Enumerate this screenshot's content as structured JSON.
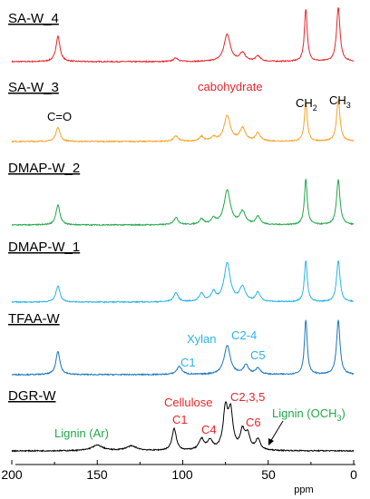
{
  "chart_data": {
    "type": "line",
    "xlabel": "ppm",
    "xlim": [
      200,
      0
    ],
    "x_reversed": true,
    "x_ticks": [
      "200",
      "150",
      "100",
      "50",
      "0"
    ],
    "series": [
      {
        "name": "SA-W_4",
        "color": "#e8262a",
        "peaks": [
          {
            "x": 173,
            "h": 28,
            "w": 1.4
          },
          {
            "x": 104,
            "h": 4,
            "w": 1.6
          },
          {
            "x": 74,
            "h": 30,
            "w": 2.2
          },
          {
            "x": 65,
            "h": 9,
            "w": 2.0
          },
          {
            "x": 56,
            "h": 6,
            "w": 1.6
          },
          {
            "x": 28,
            "h": 58,
            "w": 1.0
          },
          {
            "x": 9,
            "h": 60,
            "w": 1.2
          }
        ]
      },
      {
        "name": "SA-W_3",
        "color": "#f5a327",
        "peaks": [
          {
            "x": 173,
            "h": 16,
            "w": 1.4
          },
          {
            "x": 104,
            "h": 6,
            "w": 1.6
          },
          {
            "x": 89,
            "h": 5,
            "w": 1.6
          },
          {
            "x": 82,
            "h": 4,
            "w": 1.6
          },
          {
            "x": 74,
            "h": 28,
            "w": 2.2
          },
          {
            "x": 65,
            "h": 14,
            "w": 2.0
          },
          {
            "x": 56,
            "h": 9,
            "w": 1.6
          },
          {
            "x": 28,
            "h": 44,
            "w": 1.0
          },
          {
            "x": 9,
            "h": 46,
            "w": 1.2
          }
        ]
      },
      {
        "name": "DMAP-W_2",
        "color": "#21a84a",
        "peaks": [
          {
            "x": 173,
            "h": 22,
            "w": 1.4
          },
          {
            "x": 104,
            "h": 8,
            "w": 1.6
          },
          {
            "x": 89,
            "h": 6,
            "w": 1.6
          },
          {
            "x": 82,
            "h": 6,
            "w": 1.6
          },
          {
            "x": 74,
            "h": 38,
            "w": 2.2
          },
          {
            "x": 65,
            "h": 14,
            "w": 2.0
          },
          {
            "x": 56,
            "h": 9,
            "w": 1.6
          },
          {
            "x": 28,
            "h": 50,
            "w": 1.0
          },
          {
            "x": 9,
            "h": 50,
            "w": 1.2
          }
        ]
      },
      {
        "name": "DMAP-W_1",
        "color": "#2ab4e6",
        "peaks": [
          {
            "x": 173,
            "h": 18,
            "w": 1.4
          },
          {
            "x": 104,
            "h": 10,
            "w": 1.6
          },
          {
            "x": 89,
            "h": 9,
            "w": 1.6
          },
          {
            "x": 82,
            "h": 10,
            "w": 1.6
          },
          {
            "x": 74,
            "h": 42,
            "w": 2.2
          },
          {
            "x": 65,
            "h": 16,
            "w": 2.0
          },
          {
            "x": 56,
            "h": 10,
            "w": 1.6
          },
          {
            "x": 28,
            "h": 46,
            "w": 1.0
          },
          {
            "x": 9,
            "h": 46,
            "w": 1.2
          }
        ]
      },
      {
        "name": "TFAA-W",
        "color": "#1b75bc",
        "peaks": [
          {
            "x": 173,
            "h": 26,
            "w": 1.4
          },
          {
            "x": 102,
            "h": 9,
            "w": 1.8
          },
          {
            "x": 74,
            "h": 32,
            "w": 2.2
          },
          {
            "x": 63,
            "h": 10,
            "w": 1.8
          },
          {
            "x": 56,
            "h": 7,
            "w": 1.6
          },
          {
            "x": 28,
            "h": 60,
            "w": 1.0
          },
          {
            "x": 9,
            "h": 60,
            "w": 1.2
          }
        ]
      },
      {
        "name": "DGR-W",
        "color": "#000000",
        "peaks": [
          {
            "x": 150,
            "h": 6,
            "w": 4.0
          },
          {
            "x": 130,
            "h": 5,
            "w": 4.0
          },
          {
            "x": 105,
            "h": 24,
            "w": 1.5
          },
          {
            "x": 89,
            "h": 12,
            "w": 1.8
          },
          {
            "x": 84,
            "h": 10,
            "w": 1.8
          },
          {
            "x": 75,
            "h": 44,
            "w": 1.6
          },
          {
            "x": 72,
            "h": 40,
            "w": 1.6
          },
          {
            "x": 65,
            "h": 20,
            "w": 1.6
          },
          {
            "x": 62,
            "h": 16,
            "w": 1.6
          },
          {
            "x": 56,
            "h": 12,
            "w": 1.6
          }
        ]
      }
    ],
    "annotations": {
      "carbohydrate": "cabohydrate",
      "co": "C=O",
      "ch2": "CH",
      "ch2_sub": "2",
      "ch3": "CH",
      "ch3_sub": "3",
      "xylan": "Xylan",
      "c1_xylan": "C1",
      "c24": "C2-4",
      "c5": "C5",
      "cellulose": "Cellulose",
      "c235": "C2,3,5",
      "c1_cell": "C1",
      "c4": "C4",
      "c6": "C6",
      "lignin_ar": "Lignin (Ar)",
      "lignin_och3": "Lignin (OCH",
      "lignin_och3_sub": "3",
      "lignin_och3_close": ")"
    },
    "annotation_colors": {
      "carbohydrate": "#e8262a",
      "xylan": "#2ab4e6",
      "cellulose": "#e8262a",
      "lignin": "#21a84a"
    }
  }
}
